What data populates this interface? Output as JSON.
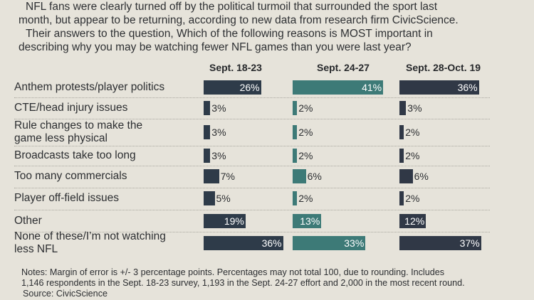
{
  "intro": {
    "line1": "NFL fans were clearly turned off by the political turmoil that surrounded the sport last",
    "line2": "month, but appear to be returning, according to new data from research firm CivicScience.",
    "line3": "Their answers to the question, Which of the following reasons is MOST important in",
    "line4": "describing why you may be watching fewer NFL games than you were last year?"
  },
  "notes": {
    "line1": "Notes: Margin of error is +/- 3 percentage points. Percentages may not total 100, due to rounding. Includes",
    "line2": "1,146 respondents in the Sept. 18-23 survey, 1,193 in the Sept. 24-27 effort and 2,000 in the most recent round.",
    "source": "Source: CivicScience"
  },
  "colors": {
    "sept18": "#2e3b49",
    "sept24": "#3d7a77",
    "sept28": "#303846"
  },
  "chart_data": {
    "type": "bar",
    "orientation": "horizontal",
    "categories": [
      [
        "Anthem protests/player politics"
      ],
      [
        "CTE/head injury issues"
      ],
      [
        "Rule changes to make the",
        "game less physical"
      ],
      [
        "Broadcasts take too long"
      ],
      [
        "Too many commercials"
      ],
      [
        "Player off-field issues"
      ],
      [
        "Other"
      ],
      [
        "None of these/I’m not watching",
        "less NFL"
      ]
    ],
    "series": [
      {
        "name": "Sept. 18-23",
        "values": [
          26,
          3,
          3,
          3,
          7,
          5,
          19,
          36
        ]
      },
      {
        "name": "Sept. 24-27",
        "values": [
          41,
          2,
          2,
          2,
          6,
          2,
          13,
          33
        ]
      },
      {
        "name": "Sept. 28-Oct. 19",
        "values": [
          36,
          3,
          2,
          2,
          6,
          2,
          12,
          37
        ]
      }
    ],
    "value_suffix": "%"
  }
}
